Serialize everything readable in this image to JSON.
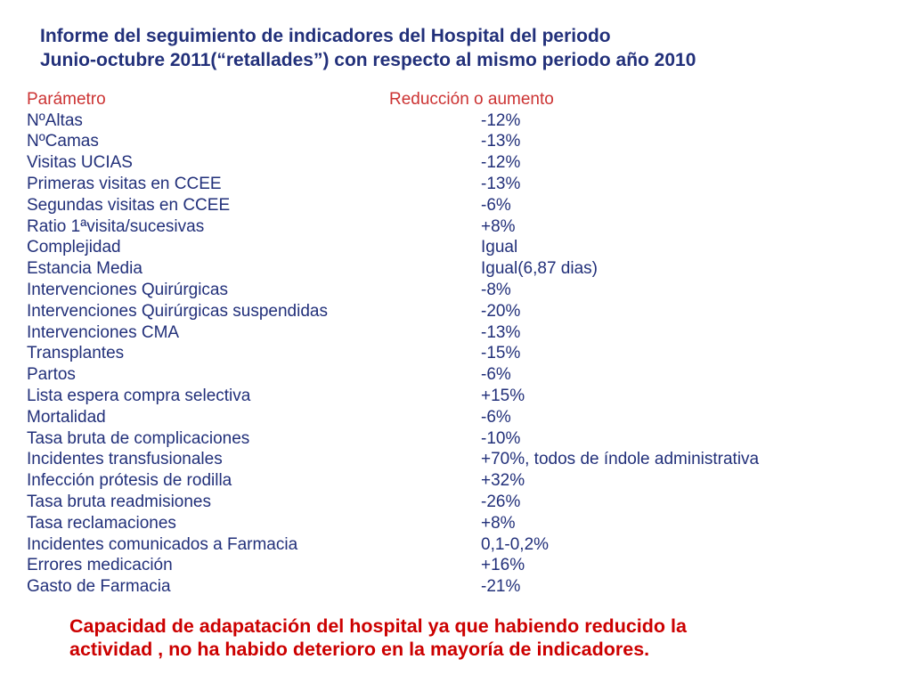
{
  "title": "Informe del seguimiento de indicadores del Hospital del periodo\nJunio-octubre 2011(“retallades”) con respecto al mismo periodo año 2010",
  "table": {
    "header": {
      "param": "Parámetro",
      "value": "Reducción o aumento"
    },
    "rows": [
      {
        "param": "NºAltas",
        "value": "-12%"
      },
      {
        "param": "NºCamas",
        "value": "-13%"
      },
      {
        "param": "Visitas UCIAS",
        "value": "-12%"
      },
      {
        "param": "Primeras visitas en CCEE",
        "value": "-13%"
      },
      {
        "param": "Segundas visitas en CCEE",
        "value": "-6%"
      },
      {
        "param": "Ratio 1ªvisita/sucesivas",
        "value": "+8%"
      },
      {
        "param": "Complejidad",
        "value": "Igual"
      },
      {
        "param": "Estancia Media",
        "value": "Igual(6,87 dias)"
      },
      {
        "param": "Intervenciones Quirúrgicas",
        "value": "-8%"
      },
      {
        "param": "Intervenciones Quirúrgicas suspendidas",
        "value": "-20%"
      },
      {
        "param": "Intervenciones CMA",
        "value": "-13%"
      },
      {
        "param": "Transplantes",
        "value": "-15%"
      },
      {
        "param": "Partos",
        "value": "-6%"
      },
      {
        "param": "Lista espera compra selectiva",
        "value": "+15%"
      },
      {
        "param": "Mortalidad",
        "value": "-6%"
      },
      {
        "param": "Tasa bruta de complicaciones",
        "value": "-10%"
      },
      {
        "param": "Incidentes transfusionales",
        "value": "+70%, todos de índole administrativa"
      },
      {
        "param": "Infección prótesis de rodilla",
        "value": "+32%"
      },
      {
        "param": "Tasa bruta readmisiones",
        "value": "-26%"
      },
      {
        "param": "Tasa reclamaciones",
        "value": "+8%"
      },
      {
        "param": "Incidentes comunicados a Farmacia",
        "value": "0,1-0,2%"
      },
      {
        "param": "Errores medicación",
        "value": "+16%"
      },
      {
        "param": "Gasto de Farmacia",
        "value": "-21%"
      }
    ]
  },
  "footer": "Capacidad de adapatación del hospital ya que habiendo reducido la\nactividad , no ha habido deterioro en la mayoría de indicadores.",
  "colors": {
    "title_blue": "#22307a",
    "header_red": "#cc3333",
    "footer_red": "#cc0000",
    "background": "#ffffff"
  }
}
